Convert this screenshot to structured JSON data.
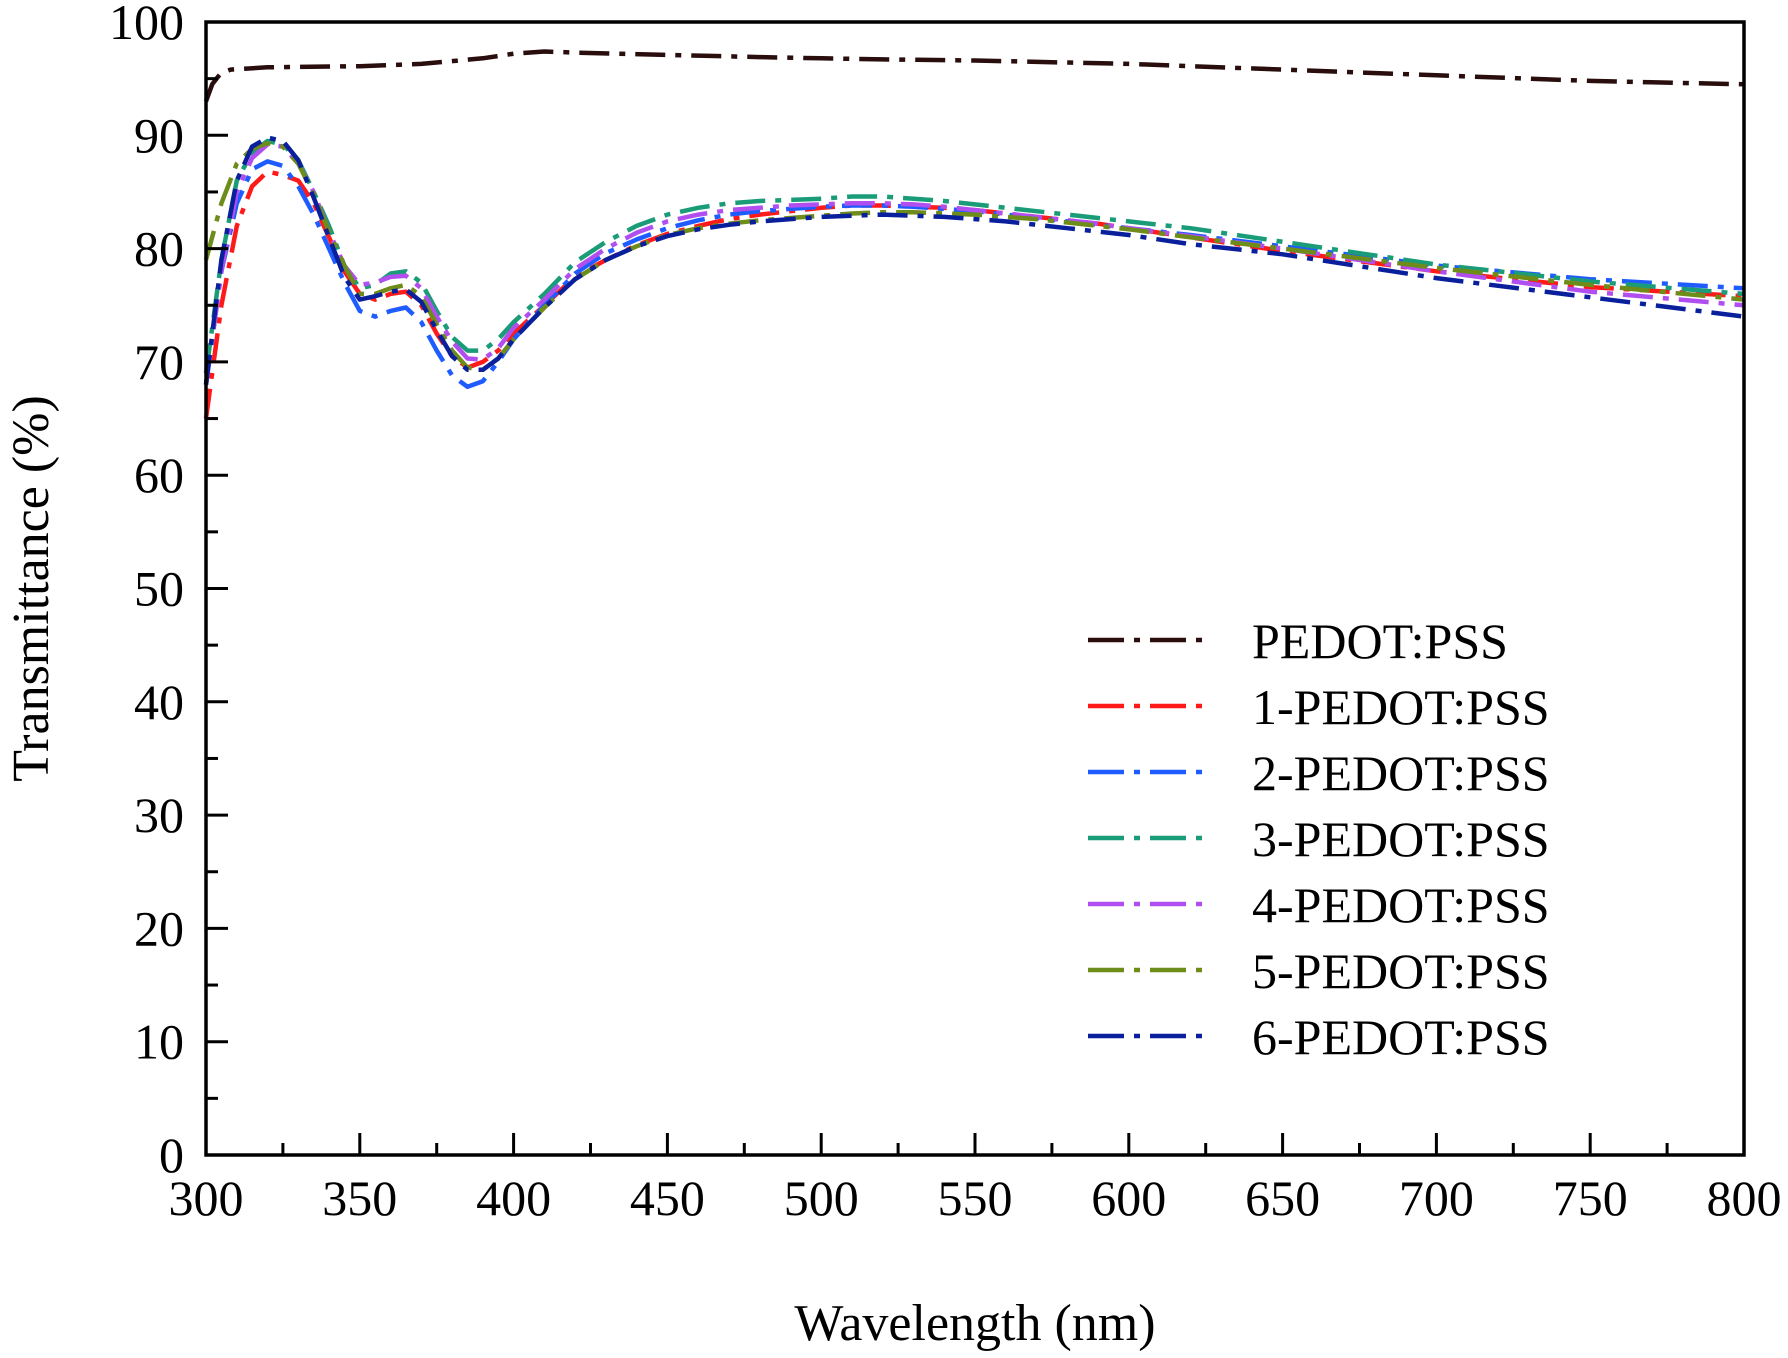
{
  "chart_data": {
    "type": "line",
    "title": "",
    "xlabel": "Wavelength (nm)",
    "ylabel": "Transmittance (%)",
    "xlim": [
      300,
      800
    ],
    "ylim": [
      0,
      100
    ],
    "xticks": [
      300,
      350,
      400,
      450,
      500,
      550,
      600,
      650,
      700,
      750,
      800
    ],
    "yticks": [
      0,
      10,
      20,
      30,
      40,
      50,
      60,
      70,
      80,
      90,
      100
    ],
    "grid": false,
    "legend_position": "center-right",
    "line_style": "dash-dot",
    "series": [
      {
        "name": "PEDOT:PSS",
        "color": "#2a0d0d",
        "x": [
          300,
          302,
          304,
          305,
          308,
          320,
          350,
          370,
          390,
          400,
          410,
          420,
          450,
          480,
          500,
          520,
          550,
          600,
          650,
          700,
          750,
          800
        ],
        "y": [
          93,
          94.5,
          95.2,
          95.5,
          95.8,
          96.0,
          96.1,
          96.3,
          96.8,
          97.2,
          97.4,
          97.3,
          97.1,
          96.9,
          96.8,
          96.7,
          96.6,
          96.3,
          95.8,
          95.3,
          94.8,
          94.5
        ]
      },
      {
        "name": "1-PEDOT:PSS",
        "color": "#ff1a1a",
        "x": [
          300,
          305,
          310,
          315,
          320,
          325,
          330,
          335,
          340,
          345,
          350,
          355,
          360,
          365,
          370,
          375,
          380,
          385,
          390,
          395,
          400,
          410,
          420,
          430,
          440,
          450,
          460,
          470,
          480,
          490,
          500,
          510,
          520,
          530,
          540,
          550,
          560,
          570,
          580,
          590,
          600,
          620,
          650,
          700,
          750,
          800
        ],
        "y": [
          65,
          75,
          82,
          85.5,
          86.8,
          86.5,
          86,
          84,
          81,
          78,
          76,
          75.5,
          76,
          76.2,
          75,
          72.5,
          70.5,
          69.5,
          70,
          71,
          72.5,
          75,
          77.5,
          79,
          80.3,
          81.3,
          82,
          82.6,
          83,
          83.3,
          83.6,
          83.8,
          83.8,
          83.7,
          83.6,
          83.4,
          83.1,
          82.8,
          82.5,
          82.2,
          81.8,
          81,
          79.8,
          78,
          76.6,
          75.8
        ]
      },
      {
        "name": "2-PEDOT:PSS",
        "color": "#1f5cff",
        "x": [
          300,
          305,
          310,
          315,
          320,
          325,
          330,
          335,
          340,
          345,
          350,
          355,
          360,
          365,
          370,
          375,
          380,
          385,
          390,
          395,
          400,
          410,
          420,
          430,
          440,
          450,
          460,
          470,
          480,
          490,
          500,
          510,
          520,
          530,
          540,
          550,
          560,
          570,
          580,
          590,
          600,
          620,
          650,
          700,
          750,
          800
        ],
        "y": [
          68,
          78,
          84,
          87,
          87.7,
          87.3,
          85.5,
          83,
          80,
          77,
          74.5,
          74,
          74.5,
          74.8,
          73.5,
          71,
          68.8,
          67.8,
          68.3,
          70,
          72,
          75,
          77.8,
          79.6,
          80.8,
          81.8,
          82.5,
          83,
          83.3,
          83.5,
          83.7,
          83.8,
          83.8,
          83.7,
          83.5,
          83.3,
          83.0,
          82.7,
          82.4,
          82.1,
          81.8,
          81.2,
          80.2,
          78.5,
          77.3,
          76.5
        ]
      },
      {
        "name": "3-PEDOT:PSS",
        "color": "#1a9c78",
        "x": [
          300,
          305,
          310,
          315,
          320,
          325,
          330,
          335,
          340,
          345,
          350,
          355,
          360,
          365,
          370,
          375,
          380,
          385,
          390,
          395,
          400,
          410,
          420,
          430,
          440,
          450,
          460,
          470,
          480,
          490,
          500,
          510,
          520,
          530,
          540,
          550,
          560,
          570,
          580,
          590,
          600,
          620,
          650,
          700,
          750,
          800
        ],
        "y": [
          69,
          79,
          86,
          88.5,
          89.5,
          89.2,
          87.8,
          85,
          82,
          78.5,
          76.5,
          76.8,
          77.8,
          78,
          77,
          74.5,
          72.2,
          71,
          71,
          72,
          73.5,
          76,
          78.8,
          80.6,
          82,
          83,
          83.6,
          84,
          84.2,
          84.3,
          84.4,
          84.6,
          84.6,
          84.4,
          84.2,
          83.9,
          83.6,
          83.3,
          83.0,
          82.7,
          82.4,
          81.8,
          80.6,
          78.6,
          77.1,
          76.0
        ]
      },
      {
        "name": "4-PEDOT:PSS",
        "color": "#b04ef0",
        "x": [
          300,
          305,
          310,
          315,
          320,
          325,
          330,
          335,
          340,
          345,
          350,
          355,
          360,
          365,
          370,
          375,
          380,
          385,
          390,
          395,
          400,
          410,
          420,
          430,
          440,
          450,
          460,
          470,
          480,
          490,
          500,
          510,
          520,
          530,
          540,
          550,
          560,
          570,
          580,
          590,
          600,
          620,
          650,
          700,
          750,
          800
        ],
        "y": [
          68,
          78,
          85,
          88,
          89.2,
          89,
          87.5,
          85,
          81.5,
          78.5,
          76.8,
          77,
          77.5,
          77.6,
          76.5,
          74,
          71.8,
          70.3,
          70.2,
          71.2,
          73,
          75.5,
          78.2,
          80,
          81.4,
          82.4,
          83,
          83.4,
          83.6,
          83.8,
          83.9,
          84,
          84,
          83.9,
          83.7,
          83.4,
          83.1,
          82.8,
          82.5,
          82.2,
          81.8,
          81.1,
          80,
          78,
          76.2,
          75.0
        ]
      },
      {
        "name": "5-PEDOT:PSS",
        "color": "#6e8c1a",
        "x": [
          300,
          305,
          310,
          315,
          320,
          325,
          330,
          335,
          340,
          345,
          350,
          355,
          360,
          365,
          370,
          375,
          380,
          385,
          390,
          395,
          400,
          410,
          420,
          430,
          440,
          450,
          460,
          470,
          480,
          490,
          500,
          510,
          520,
          530,
          540,
          550,
          560,
          570,
          580,
          590,
          600,
          620,
          650,
          700,
          750,
          800
        ],
        "y": [
          79,
          84,
          87.5,
          88.8,
          89.3,
          89,
          87.5,
          84.8,
          81.5,
          78.5,
          76,
          76,
          76.5,
          76.8,
          75.8,
          73.3,
          71,
          69.5,
          69.3,
          70.3,
          72,
          74.8,
          77.3,
          79,
          80.2,
          81.2,
          81.8,
          82.2,
          82.5,
          82.7,
          82.9,
          83.1,
          83.2,
          83.2,
          83.1,
          83.0,
          82.8,
          82.6,
          82.3,
          82.0,
          81.7,
          81.0,
          80.0,
          78.3,
          76.8,
          75.5
        ]
      },
      {
        "name": "6-PEDOT:PSS",
        "color": "#0a1f9c",
        "x": [
          300,
          305,
          310,
          315,
          320,
          325,
          330,
          335,
          340,
          345,
          350,
          355,
          360,
          365,
          370,
          375,
          380,
          385,
          390,
          395,
          400,
          410,
          420,
          430,
          440,
          450,
          460,
          470,
          480,
          490,
          500,
          510,
          520,
          530,
          540,
          550,
          560,
          570,
          580,
          590,
          600,
          620,
          650,
          700,
          750,
          800
        ],
        "y": [
          68,
          79,
          86,
          89,
          89.8,
          89.5,
          87.8,
          84.5,
          81,
          77.5,
          75.5,
          75.8,
          76.2,
          76.4,
          75.3,
          72.8,
          70.5,
          69.3,
          69.3,
          70.3,
          72,
          74.8,
          77.3,
          79,
          80.2,
          81.1,
          81.7,
          82.1,
          82.4,
          82.6,
          82.8,
          82.9,
          83.0,
          82.9,
          82.8,
          82.6,
          82.4,
          82.1,
          81.8,
          81.5,
          81.2,
          80.4,
          79.5,
          77.4,
          75.7,
          74.0
        ]
      }
    ]
  }
}
